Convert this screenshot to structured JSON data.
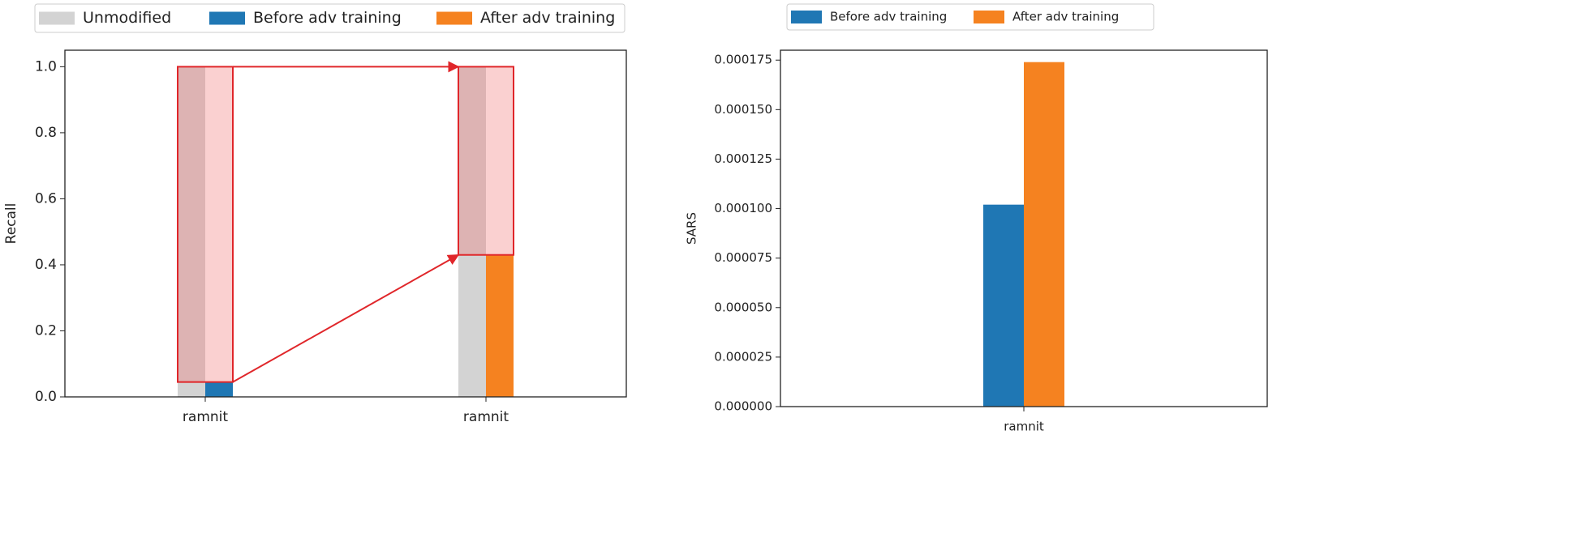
{
  "chart_data": [
    {
      "type": "bar",
      "ylabel": "Recall",
      "categories": [
        "ramnit",
        "ramnit"
      ],
      "series": [
        {
          "name": "Unmodified",
          "color": "#d3d3d3",
          "values": [
            1.0,
            1.0
          ]
        },
        {
          "name": "Before adv training",
          "color": "#1f77b4",
          "values": [
            0.045,
            null
          ]
        },
        {
          "name": "After adv training",
          "color": "#f58220",
          "values": [
            null,
            0.43
          ]
        }
      ],
      "ylim": [
        0,
        1.05
      ],
      "yticks": [
        {
          "value": 0,
          "label": "0.0"
        },
        {
          "value": 0.2,
          "label": "0.2"
        },
        {
          "value": 0.4,
          "label": "0.4"
        },
        {
          "value": 0.6,
          "label": "0.6"
        },
        {
          "value": 0.8,
          "label": "0.8"
        },
        {
          "value": 1.0,
          "label": "1.0"
        }
      ],
      "grid": false,
      "legend": "top"
    },
    {
      "type": "bar",
      "ylabel": "SARS",
      "categories": [
        "ramnit"
      ],
      "series": [
        {
          "name": "Before adv training",
          "color": "#1f77b4",
          "values": [
            0.000102
          ]
        },
        {
          "name": "After adv training",
          "color": "#f58220",
          "values": [
            0.000174
          ]
        }
      ],
      "ylim": [
        0,
        0.00018
      ],
      "yticks": [
        {
          "value": 0,
          "label": "0.000000"
        },
        {
          "value": 2.5e-05,
          "label": "0.000025"
        },
        {
          "value": 5e-05,
          "label": "0.000050"
        },
        {
          "value": 7.5e-05,
          "label": "0.000075"
        },
        {
          "value": 0.0001,
          "label": "0.000100"
        },
        {
          "value": 0.000125,
          "label": "0.000125"
        },
        {
          "value": 0.00015,
          "label": "0.000150"
        },
        {
          "value": 0.000175,
          "label": "0.000175"
        }
      ],
      "grid": false,
      "legend": "top"
    }
  ]
}
